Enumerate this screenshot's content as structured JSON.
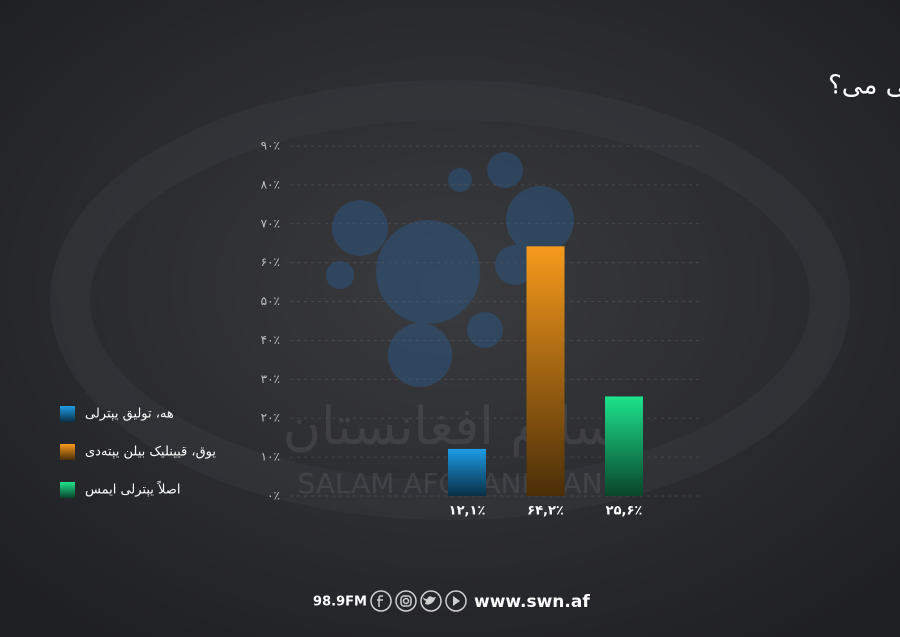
{
  "chart_data": {
    "type": "bar",
    "title": "عایله‌وی درآمد یشش خروجتلرینی تأمینلش اوچون یېترلی می؟",
    "categories": [
      "هه، تولیق یېترلی",
      "یوق، قیینلیک بیلن یېتەدی",
      "اصلاً یېترلی ایمس"
    ],
    "values": [
      12.1,
      64.2,
      25.6
    ],
    "value_labels": [
      "۱۲,۱٪",
      "۶۴,۲٪",
      "۲۵,۶٪"
    ],
    "colors": [
      "#1e9be6",
      "#f79a1c",
      "#1de38c"
    ],
    "ylim": [
      0,
      90
    ],
    "yticks": [
      {
        "value": 0,
        "label": "۰٪"
      },
      {
        "value": 10,
        "label": "۱۰٪"
      },
      {
        "value": 20,
        "label": "۲۰٪"
      },
      {
        "value": 30,
        "label": "۳۰٪"
      },
      {
        "value": 40,
        "label": "۴۰٪"
      },
      {
        "value": 50,
        "label": "۵۰٪"
      },
      {
        "value": 60,
        "label": "۶۰٪"
      },
      {
        "value": 70,
        "label": "۷۰٪"
      },
      {
        "value": 80,
        "label": "۸۰٪"
      },
      {
        "value": 90,
        "label": "۹۰٪"
      }
    ],
    "grid": true,
    "legend": "left"
  },
  "watermark": [
    "سلام افغانستان",
    "SALAM AFGHANISTAN"
  ],
  "footer": {
    "radio": "98.9FM",
    "website": "www.swn.af"
  }
}
